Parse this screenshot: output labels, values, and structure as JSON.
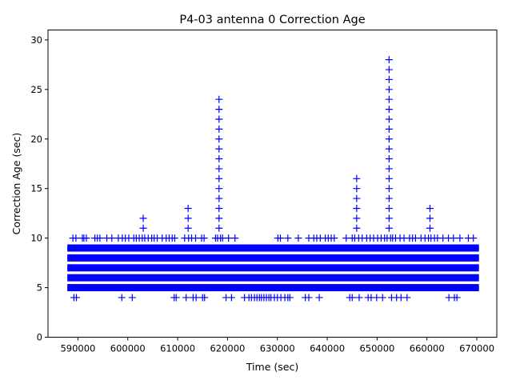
{
  "chart_data": {
    "type": "scatter",
    "title": "P4-03 antenna 0 Correction Age",
    "xlabel": "Time (sec)",
    "ylabel": "Correction Age (sec)",
    "xlim": [
      584000,
      674000
    ],
    "ylim": [
      0,
      31
    ],
    "xticks": [
      590000,
      600000,
      610000,
      620000,
      630000,
      640000,
      650000,
      660000,
      670000
    ],
    "xtick_labels": [
      "590000",
      "600000",
      "610000",
      "620000",
      "630000",
      "640000",
      "650000",
      "660000",
      "670000"
    ],
    "yticks": [
      0,
      5,
      10,
      15,
      20,
      25,
      30
    ],
    "ytick_labels": [
      "0",
      "5",
      "10",
      "15",
      "20",
      "25",
      "30"
    ],
    "marker": "+",
    "color": "#0000ff",
    "grid": false,
    "legend": "none",
    "series": [
      {
        "name": "Correction Age",
        "band_range": [
          588600,
          669700
        ],
        "band_values": [
          5,
          6,
          7,
          8,
          9
        ],
        "spikes": [
          {
            "x": 603100,
            "values": [
              11,
              12
            ]
          },
          {
            "x": 612100,
            "values": [
              11,
              12,
              13
            ]
          },
          {
            "x": 618300,
            "values": [
              11,
              12,
              13,
              14,
              15,
              16,
              17,
              18,
              19,
              20,
              21,
              22,
              23,
              24
            ]
          },
          {
            "x": 645900,
            "values": [
              11,
              12,
              13,
              14,
              15,
              16
            ]
          },
          {
            "x": 652400,
            "values": [
              11,
              12,
              13,
              14,
              15,
              16,
              17,
              18,
              19,
              20,
              21,
              22,
              23,
              24,
              25,
              26,
              27,
              28
            ]
          },
          {
            "x": 660600,
            "values": [
              11,
              12,
              13
            ]
          }
        ],
        "points": [
          [
            589000,
            10
          ],
          [
            589600,
            10
          ],
          [
            590900,
            10
          ],
          [
            591200,
            10
          ],
          [
            591700,
            10
          ],
          [
            593400,
            10
          ],
          [
            593900,
            10
          ],
          [
            594400,
            10
          ],
          [
            595800,
            10
          ],
          [
            596800,
            10
          ],
          [
            598100,
            10
          ],
          [
            598900,
            10
          ],
          [
            599500,
            10
          ],
          [
            600200,
            10
          ],
          [
            601200,
            10
          ],
          [
            601700,
            10
          ],
          [
            602300,
            10
          ],
          [
            602900,
            10
          ],
          [
            603400,
            10
          ],
          [
            604100,
            10
          ],
          [
            604800,
            10
          ],
          [
            605300,
            10
          ],
          [
            605900,
            10
          ],
          [
            606900,
            10
          ],
          [
            607700,
            10
          ],
          [
            608300,
            10
          ],
          [
            608900,
            10
          ],
          [
            609400,
            10
          ],
          [
            611400,
            10
          ],
          [
            612200,
            10
          ],
          [
            612800,
            10
          ],
          [
            613600,
            10
          ],
          [
            614800,
            10
          ],
          [
            615300,
            10
          ],
          [
            617600,
            10
          ],
          [
            618000,
            10
          ],
          [
            618600,
            10
          ],
          [
            619000,
            10
          ],
          [
            620200,
            10
          ],
          [
            621500,
            10
          ],
          [
            630100,
            10
          ],
          [
            630600,
            10
          ],
          [
            632100,
            10
          ],
          [
            634200,
            10
          ],
          [
            636300,
            10
          ],
          [
            637300,
            10
          ],
          [
            637900,
            10
          ],
          [
            638600,
            10
          ],
          [
            639600,
            10
          ],
          [
            640200,
            10
          ],
          [
            640800,
            10
          ],
          [
            641400,
            10
          ],
          [
            643800,
            10
          ],
          [
            645000,
            10
          ],
          [
            645500,
            10
          ],
          [
            646300,
            10
          ],
          [
            647000,
            10
          ],
          [
            647900,
            10
          ],
          [
            648600,
            10
          ],
          [
            649300,
            10
          ],
          [
            650100,
            10
          ],
          [
            650800,
            10
          ],
          [
            651500,
            10
          ],
          [
            652000,
            10
          ],
          [
            652700,
            10
          ],
          [
            653100,
            10
          ],
          [
            653700,
            10
          ],
          [
            654600,
            10
          ],
          [
            655400,
            10
          ],
          [
            656500,
            10
          ],
          [
            657100,
            10
          ],
          [
            657700,
            10
          ],
          [
            658800,
            10
          ],
          [
            659600,
            10
          ],
          [
            660300,
            10
          ],
          [
            660800,
            10
          ],
          [
            661500,
            10
          ],
          [
            662100,
            10
          ],
          [
            663200,
            10
          ],
          [
            664300,
            10
          ],
          [
            665300,
            10
          ],
          [
            666600,
            10
          ],
          [
            668300,
            10
          ],
          [
            669300,
            10
          ],
          [
            589200,
            4
          ],
          [
            589700,
            4
          ],
          [
            598800,
            4
          ],
          [
            600900,
            4
          ],
          [
            609300,
            4
          ],
          [
            609700,
            4
          ],
          [
            611700,
            4
          ],
          [
            613100,
            4
          ],
          [
            613700,
            4
          ],
          [
            615000,
            4
          ],
          [
            615400,
            4
          ],
          [
            619700,
            4
          ],
          [
            620800,
            4
          ],
          [
            623400,
            4
          ],
          [
            624300,
            4
          ],
          [
            624800,
            4
          ],
          [
            625400,
            4
          ],
          [
            625900,
            4
          ],
          [
            626400,
            4
          ],
          [
            626800,
            4
          ],
          [
            627300,
            4
          ],
          [
            627800,
            4
          ],
          [
            628300,
            4
          ],
          [
            628700,
            4
          ],
          [
            629400,
            4
          ],
          [
            630000,
            4
          ],
          [
            630700,
            4
          ],
          [
            631500,
            4
          ],
          [
            632100,
            4
          ],
          [
            632500,
            4
          ],
          [
            635600,
            4
          ],
          [
            636300,
            4
          ],
          [
            638400,
            4
          ],
          [
            644500,
            4
          ],
          [
            645000,
            4
          ],
          [
            646400,
            4
          ],
          [
            648200,
            4
          ],
          [
            648800,
            4
          ],
          [
            649900,
            4
          ],
          [
            651100,
            4
          ],
          [
            652900,
            4
          ],
          [
            653900,
            4
          ],
          [
            654800,
            4
          ],
          [
            656000,
            4
          ],
          [
            664400,
            4
          ],
          [
            665500,
            4
          ],
          [
            666000,
            4
          ]
        ]
      }
    ]
  }
}
